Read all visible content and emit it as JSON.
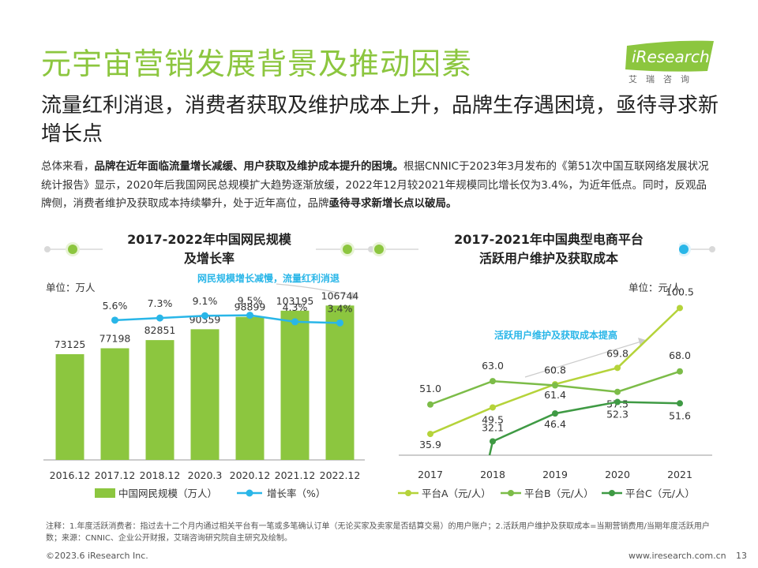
{
  "header": {
    "title": "元宇宙营销发展背景及推动因素",
    "subtitle": "流量红利消退，消费者获取及维护成本上升，品牌生存遇困境，亟待寻求新增长点",
    "logo_text": "iResearch",
    "logo_sub": "艾瑞咨询"
  },
  "summary": {
    "p1": "总体来看，",
    "b1": "品牌在近年面临流量增长减缓、用户获取及维护成本提升的困境。",
    "p2": "根据CNNIC于2023年3月发布的《第51次中国互联网络发展状况统计报告》显示，2020年后我国网民总规模扩大趋势逐渐放缓，2022年12月较2021年规模同比增长仅为3.4%，为近年低点。同时，反观品牌侧，消费者维护及获取成本持续攀升，处于近年高位，品牌",
    "b2": "亟待寻求新增长点以破局。"
  },
  "colors": {
    "green": "#8cc63f",
    "cyan": "#29b6e8",
    "lime": "#b5d33a",
    "mid_green": "#7cbc48",
    "dark_green": "#3f9a44"
  },
  "chart_data": [
    {
      "type": "bar",
      "title": "2017-2022年中国网民规模及增长率",
      "title_line1": "2017-2022年中国网民规模",
      "title_line2": "及增长率",
      "unit": "单位：万人",
      "annotation": "网民规模增长减慢，流量红利消退",
      "categories": [
        "2016.12",
        "2017.12",
        "2018.12",
        "2020.3",
        "2020.12",
        "2021.12",
        "2022.12"
      ],
      "series": [
        {
          "name": "中国网民规模（万人）",
          "type": "bar",
          "values": [
            73125,
            77198,
            82851,
            90359,
            98899,
            103195,
            106744
          ]
        },
        {
          "name": "增长率（%）",
          "type": "line",
          "values": [
            null,
            5.6,
            7.3,
            9.1,
            9.5,
            4.3,
            3.4
          ],
          "labels": [
            "",
            "5.6%",
            "7.3%",
            "9.1%",
            "9.5%",
            "4.3%",
            "3.4%"
          ]
        }
      ],
      "ylim": [
        0,
        120000
      ]
    },
    {
      "type": "line",
      "title": "2017-2021年中国典型电商平台活跃用户维护及获取成本",
      "title_line1": "2017-2021年中国典型电商平台",
      "title_line2": "活跃用户维护及获取成本",
      "unit": "单位：元/人",
      "annotation": "活跃用户维护及获取成本提高",
      "categories": [
        "2017",
        "2018",
        "2019",
        "2020",
        "2021"
      ],
      "series": [
        {
          "name": "平台A（元/人）",
          "values": [
            35.9,
            49.5,
            61.4,
            69.8,
            100.5
          ],
          "labels": [
            "35.9",
            "49.5",
            "61.4",
            "69.8",
            "100.5"
          ]
        },
        {
          "name": "平台B（元/人）",
          "values": [
            51.0,
            63.0,
            60.8,
            57.5,
            68.0
          ],
          "labels": [
            "51.0",
            "63.0",
            "60.8",
            "57.5",
            "68.0"
          ]
        },
        {
          "name": "平台C（元/人）",
          "values": [
            null,
            32.1,
            46.4,
            52.3,
            51.6
          ],
          "labels": [
            "",
            "32.1",
            "46.4",
            "52.3",
            "51.6"
          ]
        }
      ],
      "ylim": [
        25,
        110
      ]
    }
  ],
  "footer": {
    "note": "注释：1.年度活跃消费者：指过去十二个月内通过相关平台有一笔或多笔确认订单（无论买家及卖家是否结算交易）的用户账户；2.活跃用户维护及获取成本=当期营销费用/当期年度活跃用户数；来源：CNNIC、企业公开财报，艾瑞咨询研究院自主研究及绘制。",
    "copyright": "©2023.6 iResearch Inc.",
    "site": "www.iresearch.com.cn",
    "page": "13"
  }
}
